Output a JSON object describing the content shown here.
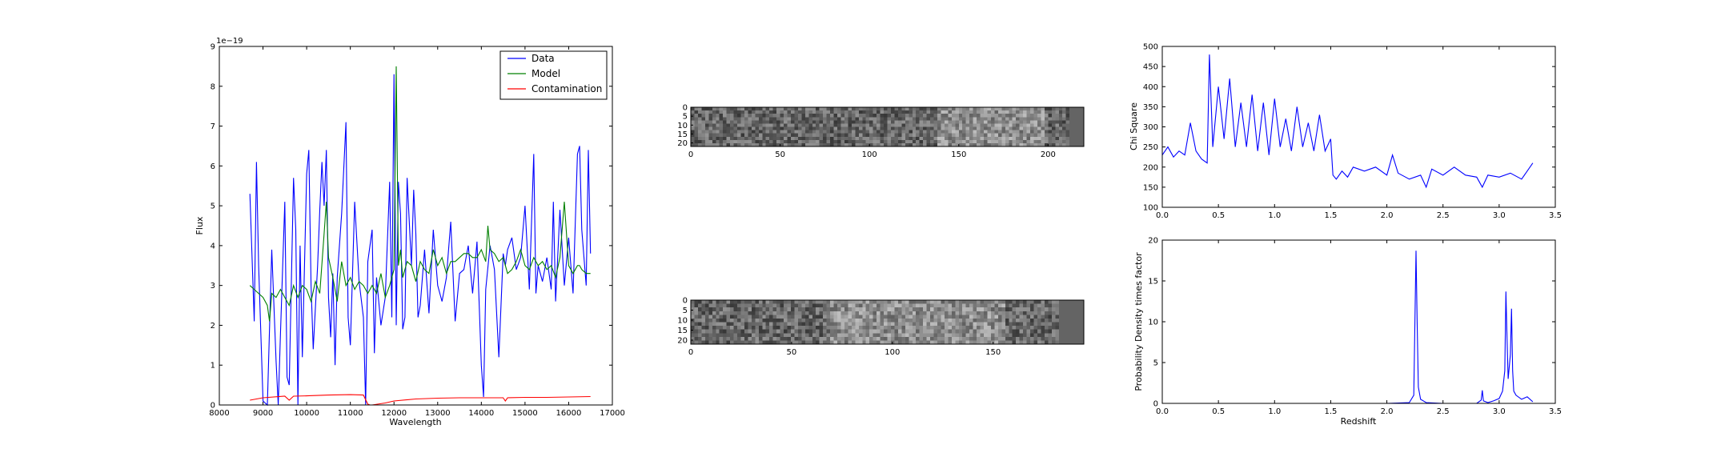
{
  "colors": {
    "data": "#0000ff",
    "model": "#008000",
    "contamination": "#ff0000",
    "axis": "#000000"
  },
  "chart_data": [
    {
      "id": "spectrum",
      "type": "line",
      "xlabel": "Wavelength",
      "ylabel": "Flux",
      "offset_text": "1e−19",
      "xlim": [
        8000,
        17000
      ],
      "ylim": [
        0,
        9
      ],
      "xticks": [
        8000,
        9000,
        10000,
        11000,
        12000,
        13000,
        14000,
        15000,
        16000,
        17000
      ],
      "yticks": [
        0,
        1,
        2,
        3,
        4,
        5,
        6,
        7,
        8,
        9
      ],
      "legend": {
        "placement": "top-right",
        "entries": [
          "Data",
          "Model",
          "Contamination"
        ]
      },
      "series": [
        {
          "name": "Data",
          "color": "#0000ff",
          "x": [
            8700,
            8800,
            8850,
            8900,
            9000,
            9100,
            9200,
            9300,
            9350,
            9400,
            9500,
            9550,
            9600,
            9700,
            9750,
            9800,
            9850,
            9900,
            10000,
            10050,
            10100,
            10150,
            10250,
            10300,
            10350,
            10400,
            10450,
            10500,
            10550,
            10600,
            10650,
            10700,
            10800,
            10900,
            10950,
            11000,
            11100,
            11200,
            11300,
            11350,
            11400,
            11500,
            11550,
            11600,
            11700,
            11800,
            11900,
            11950,
            12000,
            12050,
            12100,
            12150,
            12200,
            12250,
            12300,
            12400,
            12450,
            12500,
            12550,
            12600,
            12700,
            12800,
            12900,
            13000,
            13100,
            13200,
            13300,
            13400,
            13500,
            13600,
            13700,
            13800,
            13900,
            14000,
            14050,
            14100,
            14200,
            14250,
            14300,
            14400,
            14500,
            14550,
            14600,
            14700,
            14800,
            14900,
            15000,
            15100,
            15200,
            15250,
            15300,
            15400,
            15500,
            15600,
            15650,
            15700,
            15800,
            15900,
            16000,
            16100,
            16200,
            16250,
            16300,
            16400,
            16450,
            16500
          ],
          "y": [
            5.3,
            2.1,
            6.1,
            3.5,
            0.1,
            0.0,
            3.9,
            1.1,
            0.0,
            1.8,
            5.1,
            0.7,
            0.5,
            5.7,
            4.4,
            0.0,
            4.0,
            1.2,
            5.8,
            6.4,
            3.0,
            1.4,
            3.5,
            4.9,
            6.1,
            5.0,
            6.4,
            2.7,
            1.7,
            3.3,
            1.0,
            3.2,
            4.8,
            7.1,
            2.2,
            1.5,
            5.1,
            3.1,
            2.2,
            0.0,
            3.6,
            4.4,
            1.3,
            3.2,
            2.0,
            2.7,
            5.6,
            2.2,
            8.3,
            2.0,
            5.6,
            4.8,
            1.9,
            2.2,
            5.7,
            3.5,
            5.4,
            4.3,
            2.2,
            2.5,
            3.9,
            2.3,
            4.4,
            3.0,
            2.6,
            3.2,
            4.6,
            2.1,
            3.3,
            3.4,
            4.0,
            2.8,
            4.1,
            1.0,
            0.2,
            2.9,
            4.0,
            3.7,
            3.4,
            1.2,
            3.8,
            3.5,
            3.9,
            4.2,
            3.4,
            3.7,
            5.0,
            2.9,
            6.3,
            2.8,
            3.5,
            3.1,
            3.7,
            2.9,
            5.1,
            2.6,
            4.9,
            3.0,
            4.2,
            2.8,
            6.3,
            6.5,
            4.4,
            3.0,
            6.4,
            3.8
          ]
        },
        {
          "name": "Model",
          "color": "#008000",
          "x": [
            8700,
            8800,
            8900,
            9000,
            9100,
            9150,
            9200,
            9300,
            9400,
            9500,
            9600,
            9700,
            9800,
            9900,
            10000,
            10100,
            10200,
            10300,
            10400,
            10450,
            10500,
            10600,
            10700,
            10800,
            10900,
            11000,
            11100,
            11200,
            11300,
            11400,
            11500,
            11600,
            11700,
            11800,
            11900,
            12000,
            12050,
            12100,
            12150,
            12200,
            12300,
            12400,
            12500,
            12600,
            12700,
            12800,
            12900,
            13000,
            13100,
            13200,
            13300,
            13400,
            13500,
            13600,
            13700,
            13800,
            13900,
            14000,
            14100,
            14150,
            14200,
            14300,
            14400,
            14500,
            14600,
            14700,
            14800,
            14900,
            15000,
            15100,
            15200,
            15300,
            15400,
            15500,
            15600,
            15700,
            15800,
            15900,
            16000,
            16100,
            16200,
            16250,
            16300,
            16400,
            16500
          ],
          "y": [
            3.0,
            2.9,
            2.8,
            2.7,
            2.5,
            2.1,
            2.8,
            2.7,
            2.9,
            2.7,
            2.5,
            3.0,
            2.7,
            3.0,
            2.9,
            2.6,
            3.1,
            2.8,
            4.3,
            5.1,
            3.7,
            3.2,
            2.6,
            3.6,
            3.0,
            3.2,
            2.9,
            3.1,
            3.0,
            2.8,
            3.0,
            2.8,
            3.3,
            2.7,
            3.0,
            3.4,
            8.5,
            3.5,
            3.9,
            3.2,
            3.6,
            3.5,
            3.1,
            3.6,
            3.4,
            3.3,
            3.9,
            3.5,
            3.7,
            3.3,
            3.6,
            3.6,
            3.7,
            3.8,
            3.8,
            3.7,
            3.7,
            3.9,
            3.6,
            4.5,
            3.9,
            3.8,
            3.6,
            3.7,
            3.3,
            3.4,
            3.6,
            3.9,
            3.5,
            3.4,
            3.7,
            3.5,
            3.6,
            3.4,
            3.5,
            3.2,
            3.7,
            5.1,
            3.5,
            3.3,
            3.5,
            3.5,
            3.4,
            3.3,
            3.3
          ]
        },
        {
          "name": "Contamination",
          "color": "#ff0000",
          "x": [
            8700,
            9000,
            9500,
            9600,
            9700,
            10000,
            10500,
            11000,
            11300,
            11400,
            11450,
            11500,
            11800,
            12000,
            12500,
            13000,
            13500,
            14000,
            14500,
            14550,
            14600,
            15000,
            15500,
            16000,
            16500
          ],
          "y": [
            0.12,
            0.18,
            0.22,
            0.12,
            0.22,
            0.23,
            0.25,
            0.26,
            0.25,
            0.02,
            0.0,
            0.0,
            0.05,
            0.1,
            0.15,
            0.17,
            0.18,
            0.18,
            0.18,
            0.1,
            0.18,
            0.19,
            0.19,
            0.2,
            0.21
          ]
        }
      ]
    },
    {
      "id": "image-top",
      "type": "heatmap",
      "xlim": [
        0,
        220
      ],
      "ylim": [
        0,
        22
      ],
      "xticks": [
        0,
        50,
        100,
        150,
        200
      ],
      "yticks": [
        0,
        5,
        10,
        15,
        20
      ]
    },
    {
      "id": "image-bottom",
      "type": "heatmap",
      "xlim": [
        0,
        195
      ],
      "ylim": [
        0,
        22
      ],
      "xticks": [
        0,
        50,
        100,
        150
      ],
      "yticks": [
        0,
        5,
        10,
        15,
        20
      ]
    },
    {
      "id": "chi-square",
      "type": "line",
      "xlabel": "",
      "ylabel": "Chi Square",
      "xlim": [
        0,
        3.5
      ],
      "ylim": [
        100,
        500
      ],
      "xticks": [
        0.0,
        0.5,
        1.0,
        1.5,
        2.0,
        2.5,
        3.0,
        3.5
      ],
      "yticks": [
        100,
        150,
        200,
        250,
        300,
        350,
        400,
        450,
        500
      ],
      "series": [
        {
          "color": "#0000ff",
          "x": [
            0.0,
            0.05,
            0.1,
            0.15,
            0.2,
            0.25,
            0.3,
            0.35,
            0.4,
            0.42,
            0.45,
            0.5,
            0.55,
            0.6,
            0.65,
            0.7,
            0.75,
            0.8,
            0.85,
            0.9,
            0.95,
            1.0,
            1.05,
            1.1,
            1.15,
            1.2,
            1.25,
            1.3,
            1.35,
            1.4,
            1.45,
            1.5,
            1.52,
            1.55,
            1.6,
            1.65,
            1.7,
            1.8,
            1.9,
            2.0,
            2.05,
            2.1,
            2.2,
            2.3,
            2.35,
            2.4,
            2.5,
            2.6,
            2.7,
            2.8,
            2.85,
            2.9,
            3.0,
            3.1,
            3.2,
            3.3
          ],
          "y": [
            230,
            250,
            225,
            240,
            230,
            310,
            240,
            220,
            210,
            480,
            250,
            400,
            270,
            420,
            250,
            360,
            250,
            380,
            240,
            360,
            230,
            370,
            250,
            320,
            240,
            350,
            250,
            310,
            240,
            330,
            240,
            270,
            180,
            170,
            190,
            175,
            200,
            190,
            200,
            180,
            230,
            185,
            170,
            180,
            150,
            195,
            180,
            200,
            180,
            175,
            150,
            180,
            175,
            185,
            170,
            210
          ]
        }
      ]
    },
    {
      "id": "probability",
      "type": "line",
      "xlabel": "Redshift",
      "ylabel": "Probability Density times factor",
      "xlim": [
        0,
        3.5
      ],
      "ylim": [
        0,
        20
      ],
      "xticks": [
        0.0,
        0.5,
        1.0,
        1.5,
        2.0,
        2.5,
        3.0,
        3.5
      ],
      "yticks": [
        0,
        5,
        10,
        15,
        20
      ],
      "series": [
        {
          "color": "#0000ff",
          "x": [
            0.0,
            0.5,
            1.0,
            1.5,
            2.0,
            2.2,
            2.24,
            2.26,
            2.27,
            2.28,
            2.3,
            2.35,
            2.5,
            2.8,
            2.84,
            2.85,
            2.86,
            2.9,
            2.95,
            3.0,
            3.03,
            3.05,
            3.06,
            3.07,
            3.08,
            3.1,
            3.11,
            3.12,
            3.13,
            3.15,
            3.2,
            3.25,
            3.3
          ],
          "y": [
            0,
            0,
            0,
            0,
            0,
            0.1,
            1.0,
            18.7,
            10.0,
            2.0,
            0.5,
            0.1,
            0,
            0,
            0.4,
            1.6,
            0.3,
            0.1,
            0.3,
            0.6,
            1.5,
            4.0,
            13.7,
            8.0,
            3.0,
            6.0,
            11.6,
            4.0,
            1.5,
            1.0,
            0.5,
            0.8,
            0.2
          ]
        }
      ]
    }
  ]
}
